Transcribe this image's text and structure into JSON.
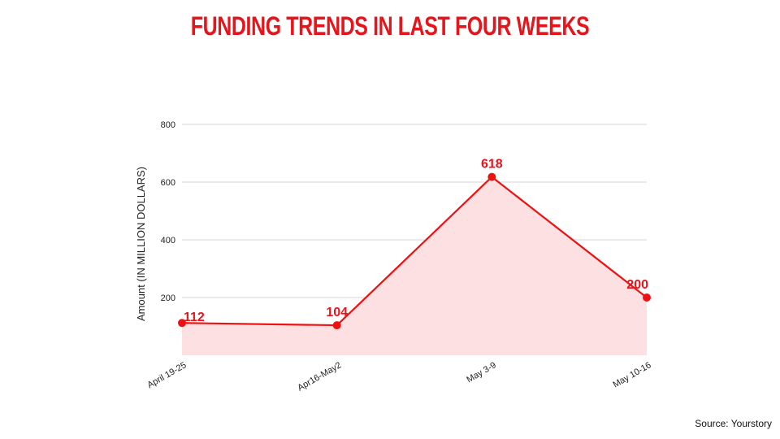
{
  "page": {
    "source_note": "Source: Yourstory"
  },
  "chart_data": {
    "type": "area",
    "title": "FUNDING TRENDS IN LAST FOUR WEEKS",
    "xlabel": "",
    "ylabel": "Amount (IN MILLION DOLLARS)",
    "categories": [
      "April 19-25",
      "Apr16-May2",
      "May 3-9",
      "May 10-16"
    ],
    "series": [
      {
        "values": [
          112,
          104,
          618,
          200
        ]
      }
    ],
    "ylim": [
      0,
      800
    ],
    "yticks": [
      200,
      400,
      600,
      800
    ],
    "grid": true,
    "legend": "none",
    "data_labels": true,
    "colors": {
      "title": "#e8141b",
      "line": "#ee1111",
      "area_fill": "#fde0e1",
      "grid": "#d6d6d6",
      "label": "#e8141b"
    }
  }
}
